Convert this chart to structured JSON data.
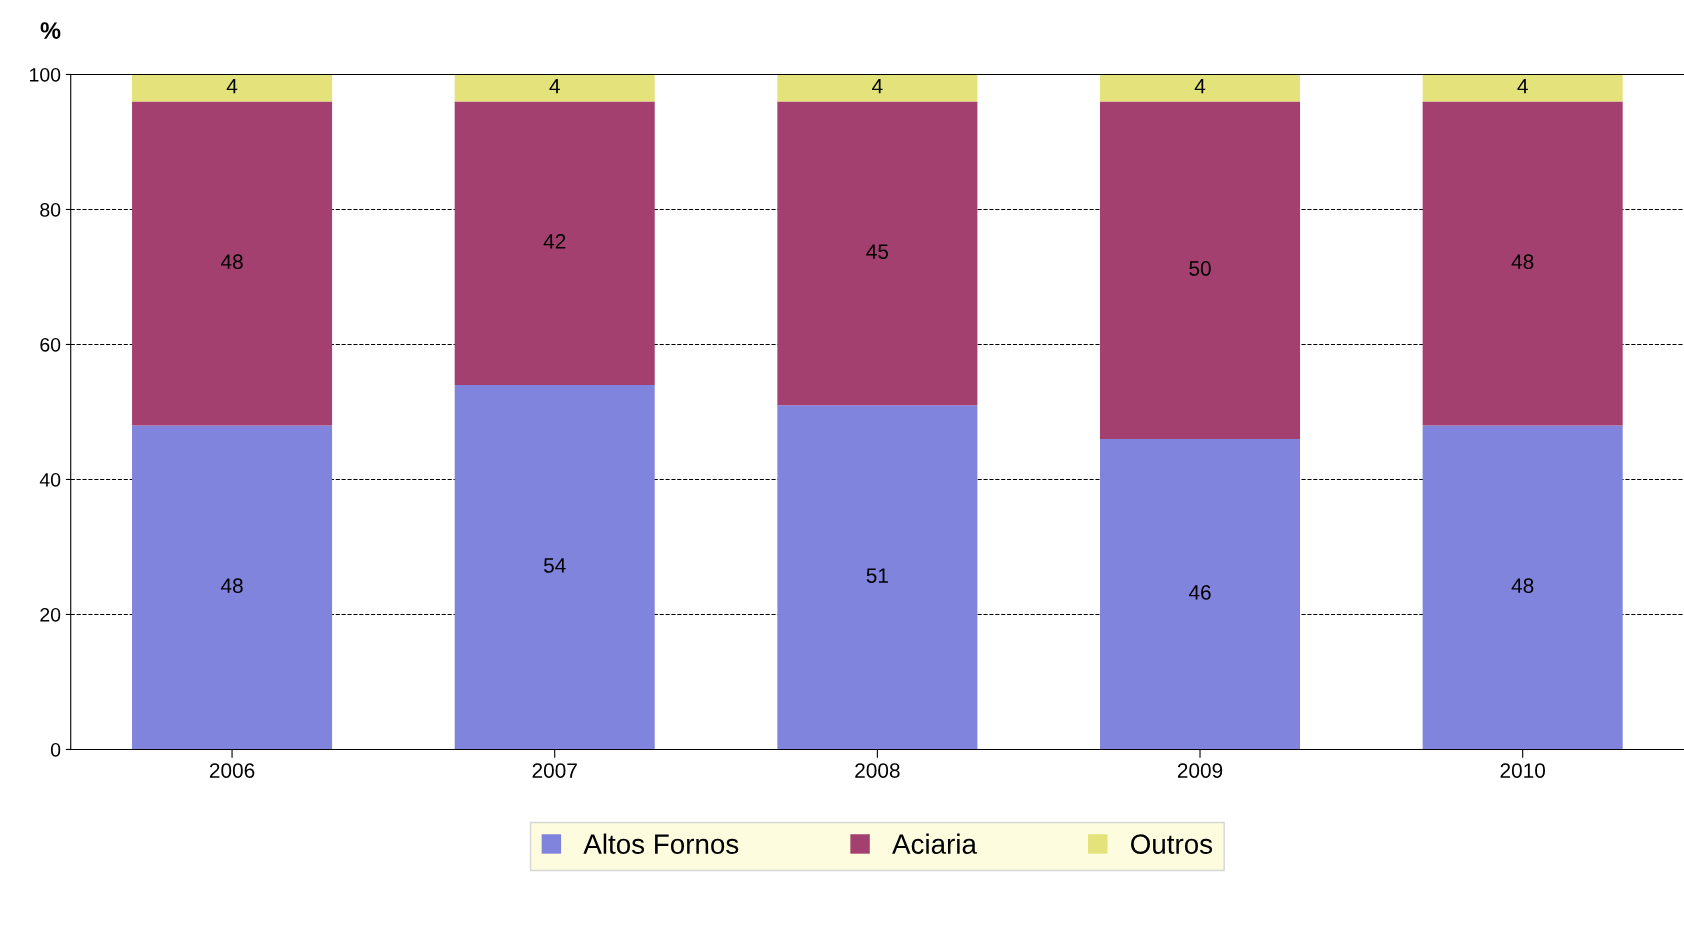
{
  "chart_data": {
    "type": "bar",
    "stacked": true,
    "ylabel": "%",
    "categories": [
      "2006",
      "2007",
      "2008",
      "2009",
      "2010"
    ],
    "series": [
      {
        "name": "Altos Fornos",
        "color": "#8184dc",
        "values": [
          48,
          54,
          51,
          46,
          48
        ]
      },
      {
        "name": "Aciaria",
        "color": "#a3406f",
        "values": [
          48,
          42,
          45,
          50,
          48
        ]
      },
      {
        "name": "Outros",
        "color": "#e4e27a",
        "values": [
          4,
          4,
          4,
          4,
          4
        ]
      }
    ],
    "ylim": [
      0,
      100
    ],
    "yticks": [
      0,
      20,
      40,
      60,
      80,
      100
    ],
    "grid": "y",
    "legend": "bottom",
    "data_labels": true
  }
}
